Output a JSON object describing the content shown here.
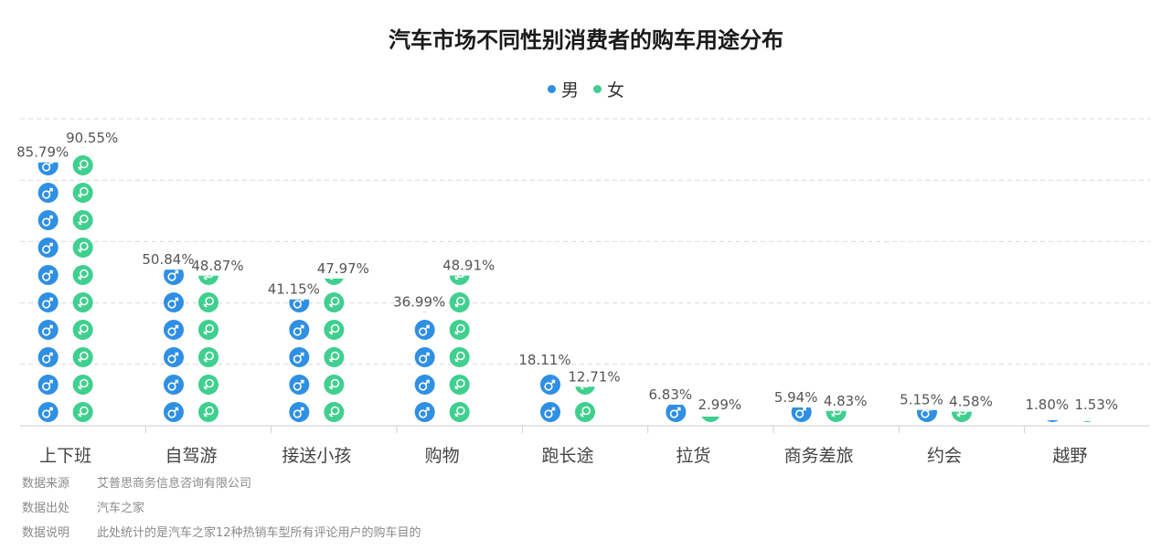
{
  "chart_data": {
    "type": "bar",
    "title": "汽车市场不同性别消费者的购车用途分布",
    "categories": [
      "上下班",
      "自驾游",
      "接送小孩",
      "购物",
      "跑长途",
      "拉货",
      "商务差旅",
      "约会",
      "越野"
    ],
    "series": [
      {
        "name": "男",
        "values": [
          85.79,
          50.84,
          41.15,
          36.99,
          18.11,
          6.83,
          5.94,
          5.15,
          1.8
        ],
        "labels": [
          "85.79%",
          "50.84%",
          "41.15%",
          "36.99%",
          "18.11%",
          "6.83%",
          "5.94%",
          "5.15%",
          "1.80%"
        ]
      },
      {
        "name": "女",
        "values": [
          90.55,
          48.87,
          47.97,
          48.91,
          12.71,
          2.99,
          4.83,
          4.58,
          1.53
        ],
        "labels": [
          "90.55%",
          "48.87%",
          "47.97%",
          "48.91%",
          "12.71%",
          "2.99%",
          "4.83%",
          "4.58%",
          "1.53%"
        ]
      }
    ],
    "ylim": [
      0,
      100
    ],
    "grid": true,
    "legend_position": "top-center",
    "colors": {
      "male": "#2f8fe3",
      "female": "#3fcf8e"
    },
    "icons": {
      "male": "male-symbol-icon",
      "female": "female-symbol-icon"
    }
  },
  "notes": [
    {
      "label": "数据来源",
      "text": "艾普思商务信息咨询有限公司"
    },
    {
      "label": "数据出处",
      "text": "汽车之家"
    },
    {
      "label": "数据说明",
      "text": "此处统计的是汽车之家12种热销车型所有评论用户的购车目的"
    }
  ]
}
